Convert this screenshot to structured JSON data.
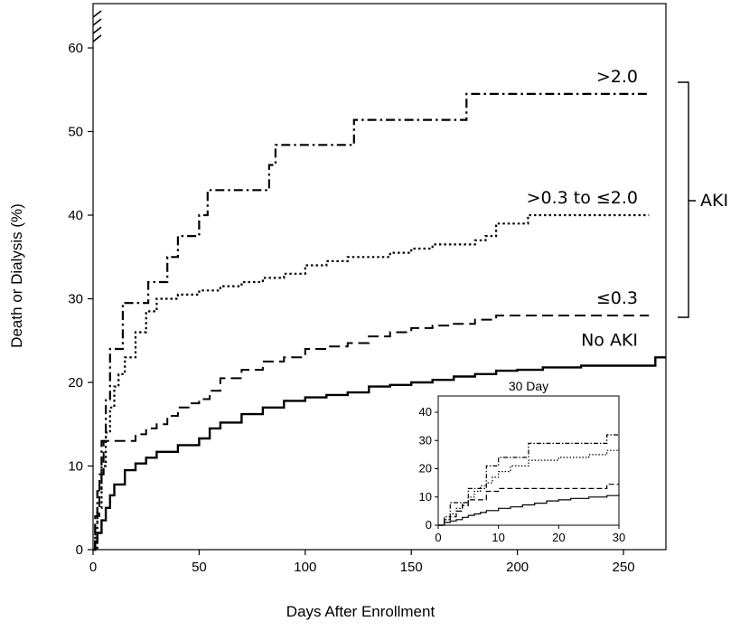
{
  "chart_data": {
    "type": "line",
    "step": true,
    "xlabel": "Days After Enrollment",
    "ylabel": "Death or Dialysis (%)",
    "xlim": [
      0,
      270
    ],
    "ylim": [
      0,
      65
    ],
    "xticks": [
      "0",
      "50",
      "100",
      "150",
      "200",
      "250"
    ],
    "yticks": [
      "0",
      "10",
      "20",
      "30",
      "40",
      "50",
      "60"
    ],
    "y_axis_break": true,
    "grid": false,
    "bracket_label": "AKI",
    "series": [
      {
        "name": ">2.0",
        "style": "dash-dot",
        "x": [
          0,
          1,
          2,
          4,
          6,
          8,
          10,
          14,
          20,
          26,
          30,
          35,
          40,
          45,
          50,
          54,
          57,
          60,
          70,
          80,
          83,
          86,
          88,
          95,
          100,
          110,
          120,
          123,
          130,
          140,
          150,
          160,
          176,
          180,
          200,
          230,
          262
        ],
        "y": [
          0,
          3,
          7,
          13,
          18,
          24,
          24,
          29.5,
          29.5,
          32,
          32,
          35,
          37.5,
          37.5,
          40,
          43,
          43,
          43,
          43,
          43,
          46,
          48.4,
          48.4,
          48.4,
          48.4,
          48.4,
          48.4,
          51.4,
          51.4,
          51.4,
          51.4,
          51.4,
          54.5,
          54.5,
          54.5,
          54.5,
          54.5
        ]
      },
      {
        "name": ">0.3 to ≤2.0",
        "style": "dotted",
        "x": [
          0,
          2,
          4,
          6,
          8,
          10,
          12,
          15,
          20,
          25,
          30,
          40,
          50,
          60,
          70,
          80,
          90,
          100,
          110,
          120,
          130,
          140,
          150,
          160,
          170,
          180,
          185,
          190,
          205,
          230,
          262
        ],
        "y": [
          0,
          5,
          10,
          14,
          17,
          19.5,
          21,
          23,
          26,
          28.5,
          30,
          30.5,
          31,
          31.5,
          32,
          32.5,
          33,
          34,
          34.5,
          35,
          35,
          35.5,
          36,
          36.5,
          36.5,
          37,
          37.5,
          39,
          40,
          40,
          40
        ]
      },
      {
        "name": "≤0.3",
        "style": "dashed",
        "x": [
          0,
          1,
          3,
          5,
          10,
          15,
          20,
          25,
          30,
          35,
          40,
          45,
          50,
          55,
          60,
          70,
          80,
          90,
          100,
          110,
          120,
          130,
          140,
          150,
          160,
          170,
          180,
          190,
          200,
          230,
          262
        ],
        "y": [
          0,
          4,
          9,
          13,
          13,
          13,
          13.8,
          14.5,
          15,
          16,
          17,
          17.5,
          18,
          19,
          20.5,
          21.5,
          22.5,
          23,
          24,
          24.3,
          24.7,
          25.5,
          26,
          26.5,
          26.8,
          27,
          27.5,
          28,
          28,
          28,
          28
        ]
      },
      {
        "name": "No AKI",
        "style": "solid",
        "x": [
          0,
          1,
          2,
          4,
          6,
          8,
          10,
          15,
          20,
          25,
          30,
          40,
          50,
          55,
          60,
          70,
          80,
          90,
          100,
          110,
          120,
          130,
          140,
          150,
          160,
          170,
          180,
          190,
          200,
          212,
          230,
          250,
          265,
          270
        ],
        "y": [
          0,
          1,
          2,
          3.5,
          5,
          6.5,
          7.8,
          9.5,
          10.3,
          11,
          11.7,
          12.5,
          13.3,
          14.5,
          15.2,
          16.2,
          17,
          17.8,
          18.2,
          18.5,
          18.8,
          19.5,
          19.7,
          20,
          20.3,
          20.7,
          21,
          21.4,
          21.5,
          21.8,
          22,
          22,
          23,
          23
        ]
      }
    ],
    "inset": {
      "title": "30 Day",
      "xlim": [
        0,
        30
      ],
      "ylim": [
        0,
        42
      ],
      "xticks": [
        "0",
        "10",
        "20",
        "30"
      ],
      "yticks": [
        "0",
        "10",
        "20",
        "30",
        "40"
      ],
      "series": [
        {
          "name": ">2.0",
          "style": "dash-dot",
          "x": [
            0,
            1,
            2,
            3,
            5,
            8,
            10,
            13,
            15,
            18,
            20,
            25,
            28,
            30
          ],
          "y": [
            0,
            3,
            8,
            8,
            13,
            21,
            24,
            24,
            29,
            29,
            29,
            29,
            32,
            32
          ]
        },
        {
          "name": ">0.3 to ≤2.0",
          "style": "dotted",
          "x": [
            0,
            1,
            2,
            3,
            4,
            5,
            6,
            7,
            8,
            9,
            10,
            12,
            15,
            20,
            25,
            28,
            30
          ],
          "y": [
            0,
            2,
            4,
            6,
            8,
            10,
            12,
            14,
            15,
            17,
            19,
            21,
            23,
            24,
            25,
            26.5,
            27
          ]
        },
        {
          "name": "≤0.3",
          "style": "dashed",
          "x": [
            0,
            1,
            2,
            3,
            4,
            5,
            8,
            10,
            15,
            20,
            28,
            30
          ],
          "y": [
            0,
            2,
            3,
            5,
            7,
            9,
            12,
            13,
            13,
            13,
            14.5,
            14.5
          ]
        },
        {
          "name": "No AKI",
          "style": "solid",
          "x": [
            0,
            1,
            2,
            3,
            4,
            5,
            6,
            7,
            8,
            10,
            12,
            14,
            16,
            18,
            20,
            22,
            25,
            28,
            30
          ],
          "y": [
            0,
            1,
            1.5,
            2,
            2.8,
            3.5,
            4,
            4.5,
            5.2,
            6,
            6.5,
            7.2,
            7.8,
            8.6,
            9,
            9.5,
            10,
            10.5,
            11
          ]
        }
      ]
    }
  }
}
